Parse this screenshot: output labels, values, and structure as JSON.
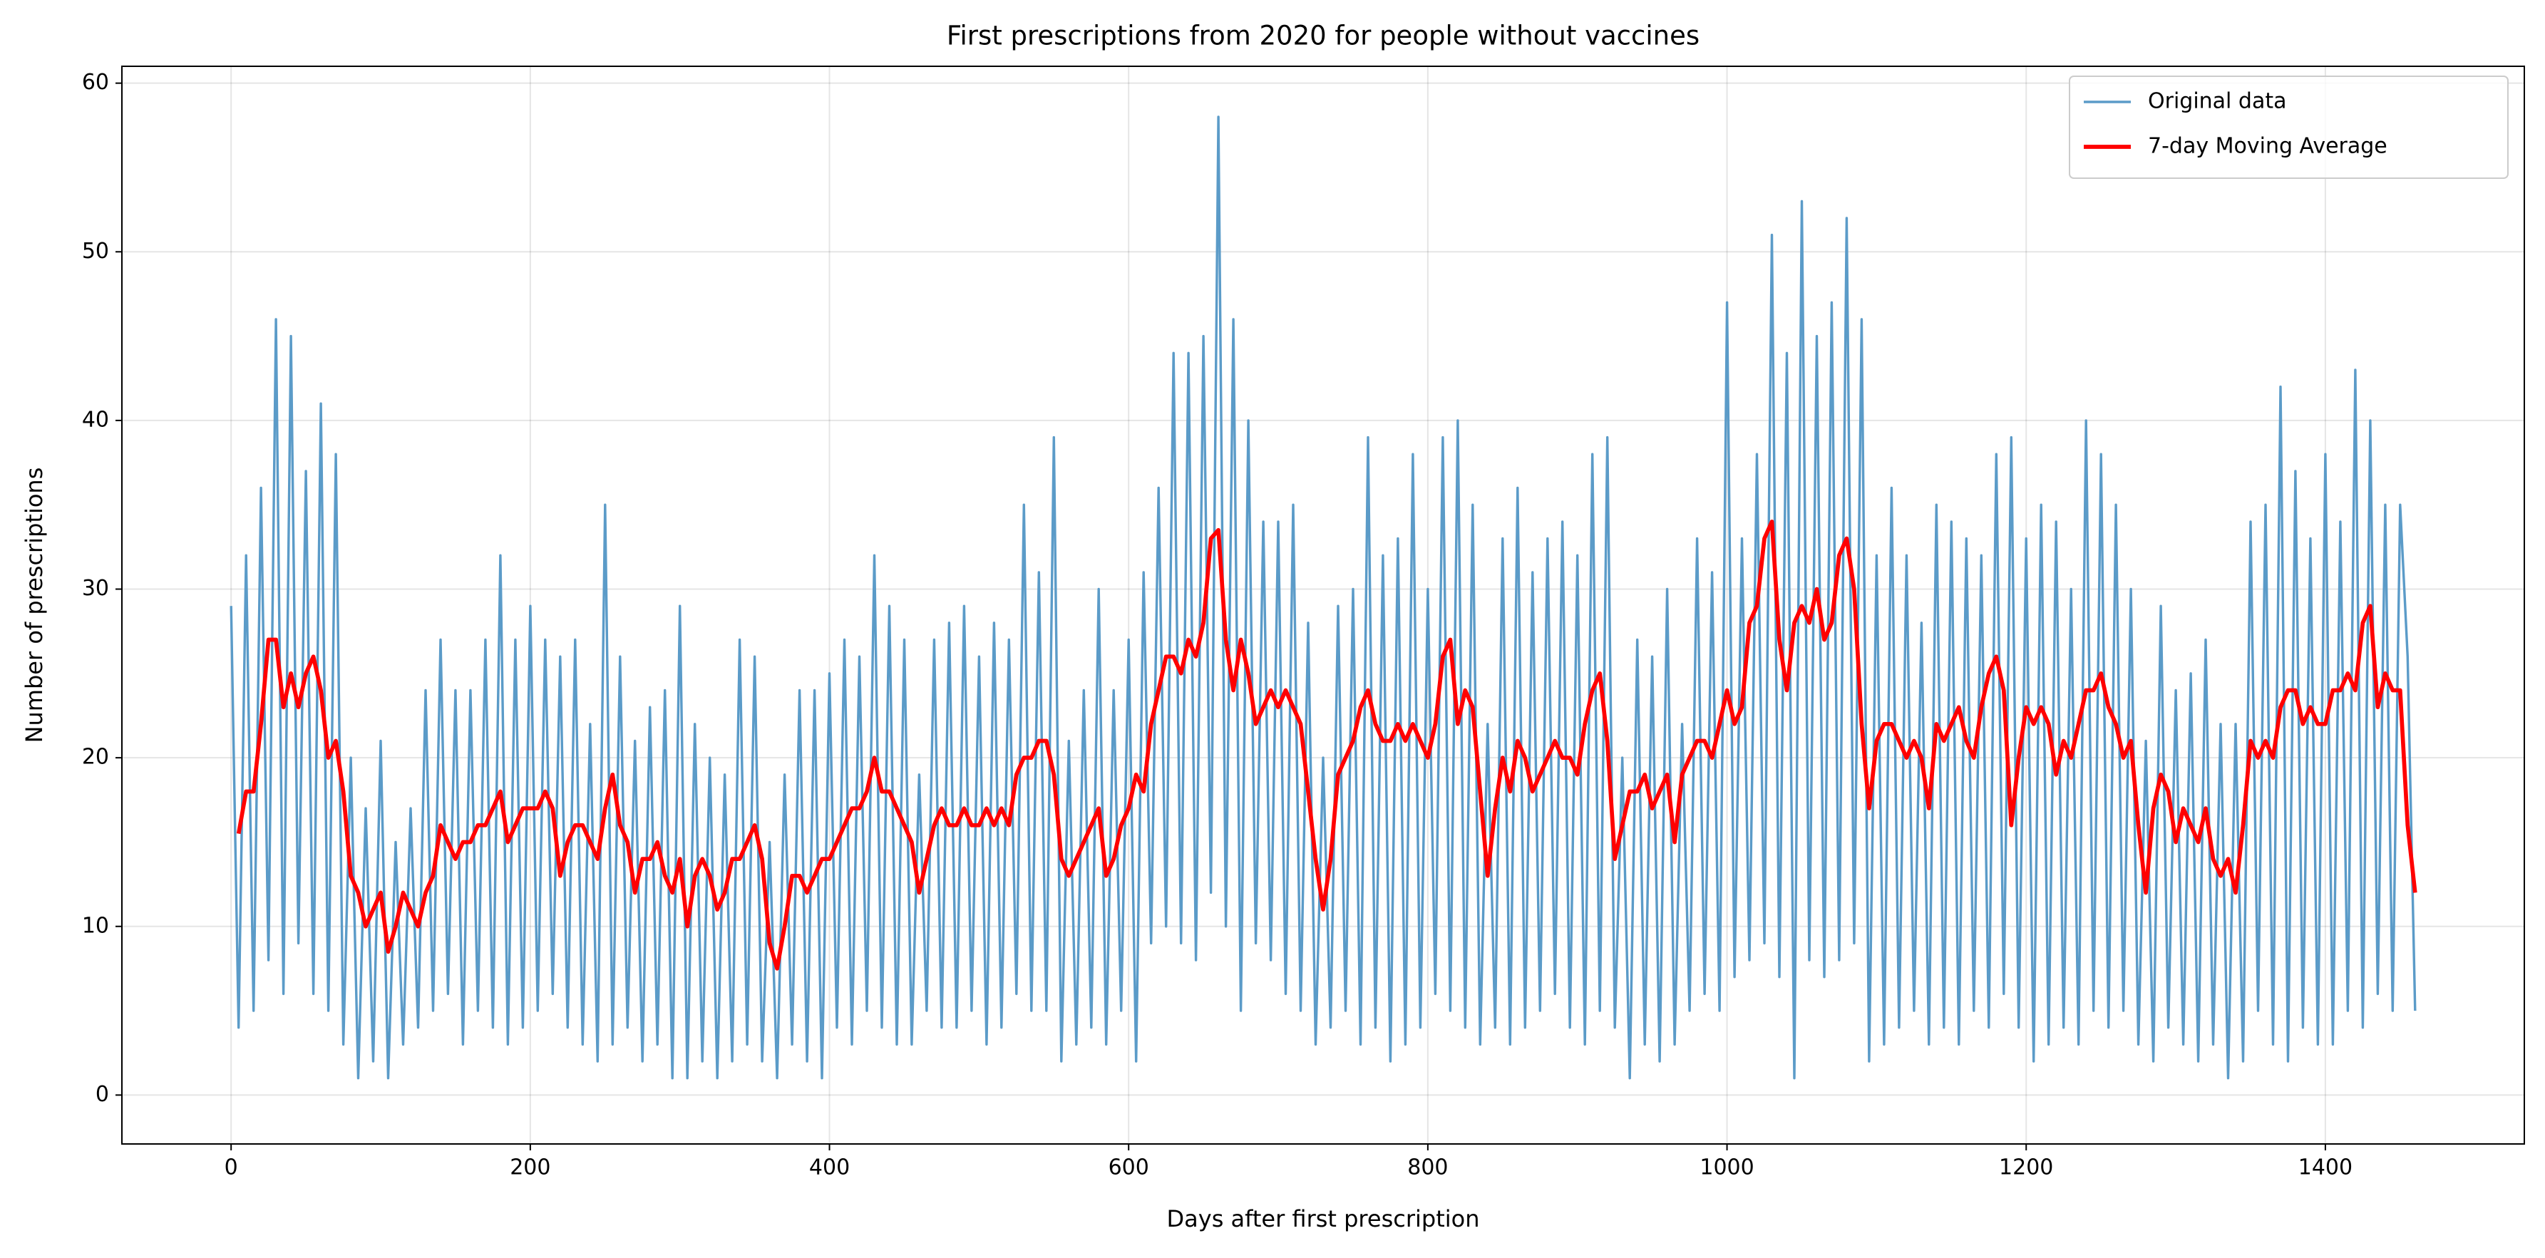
{
  "chart_data": {
    "type": "line",
    "title": "First prescriptions from 2020 for people without vaccines",
    "x_label": "Days after first prescription",
    "y_label": "Number of prescriptions",
    "x": [
      0,
      5,
      10,
      15,
      20,
      25,
      30,
      35,
      40,
      45,
      50,
      55,
      60,
      65,
      70,
      75,
      80,
      85,
      90,
      95,
      100,
      105,
      110,
      115,
      120,
      125,
      130,
      135,
      140,
      145,
      150,
      155,
      160,
      165,
      170,
      175,
      180,
      185,
      190,
      195,
      200,
      205,
      210,
      215,
      220,
      225,
      230,
      235,
      240,
      245,
      250,
      255,
      260,
      265,
      270,
      275,
      280,
      285,
      290,
      295,
      300,
      305,
      310,
      315,
      320,
      325,
      330,
      335,
      340,
      345,
      350,
      355,
      360,
      365,
      370,
      375,
      380,
      385,
      390,
      395,
      400,
      405,
      410,
      415,
      420,
      425,
      430,
      435,
      440,
      445,
      450,
      455,
      460,
      465,
      470,
      475,
      480,
      485,
      490,
      495,
      500,
      505,
      510,
      515,
      520,
      525,
      530,
      535,
      540,
      545,
      550,
      555,
      560,
      565,
      570,
      575,
      580,
      585,
      590,
      595,
      600,
      605,
      610,
      615,
      620,
      625,
      630,
      635,
      640,
      645,
      650,
      655,
      660,
      665,
      670,
      675,
      680,
      685,
      690,
      695,
      700,
      705,
      710,
      715,
      720,
      725,
      730,
      735,
      740,
      745,
      750,
      755,
      760,
      765,
      770,
      775,
      780,
      785,
      790,
      795,
      800,
      805,
      810,
      815,
      820,
      825,
      830,
      835,
      840,
      845,
      850,
      855,
      860,
      865,
      870,
      875,
      880,
      885,
      890,
      895,
      900,
      905,
      910,
      915,
      920,
      925,
      930,
      935,
      940,
      945,
      950,
      955,
      960,
      965,
      970,
      975,
      980,
      985,
      990,
      995,
      1000,
      1005,
      1010,
      1015,
      1020,
      1025,
      1030,
      1035,
      1040,
      1045,
      1050,
      1055,
      1060,
      1065,
      1070,
      1075,
      1080,
      1085,
      1090,
      1095,
      1100,
      1105,
      1110,
      1115,
      1120,
      1125,
      1130,
      1135,
      1140,
      1145,
      1150,
      1155,
      1160,
      1165,
      1170,
      1175,
      1180,
      1185,
      1190,
      1195,
      1200,
      1205,
      1210,
      1215,
      1220,
      1225,
      1230,
      1235,
      1240,
      1245,
      1250,
      1255,
      1260,
      1265,
      1270,
      1275,
      1280,
      1285,
      1290,
      1295,
      1300,
      1305,
      1310,
      1315,
      1320,
      1325,
      1330,
      1335,
      1340,
      1345,
      1350,
      1355,
      1360,
      1365,
      1370,
      1375,
      1380,
      1385,
      1390,
      1395,
      1400,
      1405,
      1410,
      1415,
      1420,
      1425,
      1430,
      1435,
      1440,
      1445,
      1450,
      1455,
      1460
    ],
    "series": [
      {
        "name": "Original data",
        "color": "#5b9bc8",
        "width": 1.5,
        "values": [
          29,
          4,
          32,
          5,
          36,
          8,
          46,
          6,
          45,
          9,
          37,
          6,
          41,
          5,
          38,
          3,
          20,
          1,
          17,
          2,
          21,
          1,
          15,
          3,
          17,
          4,
          24,
          5,
          27,
          6,
          24,
          3,
          24,
          5,
          27,
          4,
          32,
          3,
          27,
          4,
          29,
          5,
          27,
          6,
          26,
          4,
          27,
          3,
          22,
          2,
          35,
          3,
          26,
          4,
          21,
          2,
          23,
          3,
          24,
          1,
          29,
          1,
          22,
          2,
          20,
          1,
          19,
          2,
          27,
          3,
          26,
          2,
          15,
          1,
          19,
          3,
          24,
          2,
          24,
          1,
          25,
          4,
          27,
          3,
          26,
          5,
          32,
          4,
          29,
          3,
          27,
          3,
          19,
          5,
          27,
          4,
          28,
          4,
          29,
          5,
          26,
          3,
          28,
          4,
          27,
          6,
          35,
          5,
          31,
          5,
          39,
          2,
          21,
          3,
          24,
          4,
          30,
          3,
          24,
          5,
          27,
          2,
          31,
          9,
          36,
          10,
          44,
          9,
          44,
          8,
          45,
          12,
          58,
          10,
          46,
          5,
          40,
          9,
          34,
          8,
          34,
          6,
          35,
          5,
          28,
          3,
          20,
          4,
          29,
          5,
          30,
          3,
          39,
          4,
          32,
          2,
          33,
          3,
          38,
          4,
          30,
          6,
          39,
          5,
          40,
          4,
          35,
          3,
          22,
          4,
          33,
          3,
          36,
          4,
          31,
          5,
          33,
          6,
          34,
          4,
          32,
          3,
          38,
          5,
          39,
          4,
          20,
          1,
          27,
          3,
          26,
          2,
          30,
          3,
          22,
          5,
          33,
          6,
          31,
          5,
          47,
          7,
          33,
          8,
          38,
          9,
          51,
          7,
          44,
          1,
          53,
          8,
          45,
          7,
          47,
          8,
          52,
          9,
          46,
          2,
          32,
          3,
          36,
          4,
          32,
          5,
          28,
          3,
          35,
          4,
          34,
          3,
          33,
          5,
          32,
          4,
          38,
          6,
          39,
          4,
          33,
          2,
          35,
          3,
          34,
          4,
          30,
          3,
          40,
          5,
          38,
          4,
          35,
          5,
          30,
          3,
          21,
          2,
          29,
          4,
          24,
          3,
          25,
          2,
          27,
          3,
          22,
          1,
          22,
          2,
          34,
          5,
          35,
          3,
          42,
          2,
          37,
          4,
          33,
          3,
          38,
          3,
          34,
          5,
          43,
          4,
          40,
          6,
          35,
          5,
          35,
          26,
          5
        ]
      },
      {
        "name": "7-day Moving Average",
        "color": "#ff0000",
        "width": 2.5,
        "values": [
          null,
          15.5,
          18,
          18,
          22,
          27,
          27,
          23,
          25,
          23,
          25,
          26,
          24,
          20,
          21,
          18,
          13,
          12,
          10,
          11,
          12,
          8.5,
          10,
          12,
          11,
          10,
          12,
          13,
          16,
          15,
          14,
          15,
          15,
          16,
          16,
          17,
          18,
          15,
          16,
          17,
          17,
          17,
          18,
          17,
          13,
          15,
          16,
          16,
          15,
          14,
          17,
          19,
          16,
          15,
          12,
          14,
          14,
          15,
          13,
          12,
          14,
          10,
          13,
          14,
          13,
          11,
          12,
          14,
          14,
          15,
          16,
          14,
          9,
          7.5,
          10,
          13,
          13,
          12,
          13,
          14,
          14,
          15,
          16,
          17,
          17,
          18,
          20,
          18,
          18,
          17,
          16,
          15,
          12,
          14,
          16,
          17,
          16,
          16,
          17,
          16,
          16,
          17,
          16,
          17,
          16,
          19,
          20,
          20,
          21,
          21,
          19,
          14,
          13,
          14,
          15,
          16,
          17,
          13,
          14,
          16,
          17,
          19,
          18,
          22,
          24,
          26,
          26,
          25,
          27,
          26,
          28,
          33,
          33.5,
          27,
          24,
          27,
          25,
          22,
          23,
          24,
          23,
          24,
          23,
          22,
          18,
          14,
          11,
          14,
          19,
          20,
          21,
          23,
          24,
          22,
          21,
          21,
          22,
          21,
          22,
          21,
          20,
          22,
          26,
          27,
          22,
          24,
          23,
          18,
          13,
          17,
          20,
          18,
          21,
          20,
          18,
          19,
          20,
          21,
          20,
          20,
          19,
          22,
          24,
          25,
          21,
          14,
          16,
          18,
          18,
          19,
          17,
          18,
          19,
          15,
          19,
          20,
          21,
          21,
          20,
          22,
          24,
          22,
          23,
          28,
          29,
          33,
          34,
          27,
          24,
          28,
          29,
          28,
          30,
          27,
          28,
          32,
          33,
          30,
          22,
          17,
          21,
          22,
          22,
          21,
          20,
          21,
          20,
          17,
          22,
          21,
          22,
          23,
          21,
          20,
          23,
          25,
          26,
          24,
          16,
          20,
          23,
          22,
          23,
          22,
          19,
          21,
          20,
          22,
          24,
          24,
          25,
          23,
          22,
          20,
          21,
          16,
          12,
          17,
          19,
          18,
          15,
          17,
          16,
          15,
          17,
          14,
          13,
          14,
          12,
          16,
          21,
          20,
          21,
          20,
          23,
          24,
          24,
          22,
          23,
          22,
          22,
          24,
          24,
          25,
          24,
          28,
          29,
          23,
          25,
          24,
          24,
          16,
          12
        ]
      }
    ],
    "xlim": [
      -73,
      1533
    ],
    "ylim": [
      -2.9,
      61
    ],
    "xticks": [
      0,
      200,
      400,
      600,
      800,
      1000,
      1200,
      1400
    ],
    "yticks": [
      0,
      10,
      20,
      30,
      40,
      50,
      60
    ],
    "grid": true,
    "legend": "upper right"
  }
}
